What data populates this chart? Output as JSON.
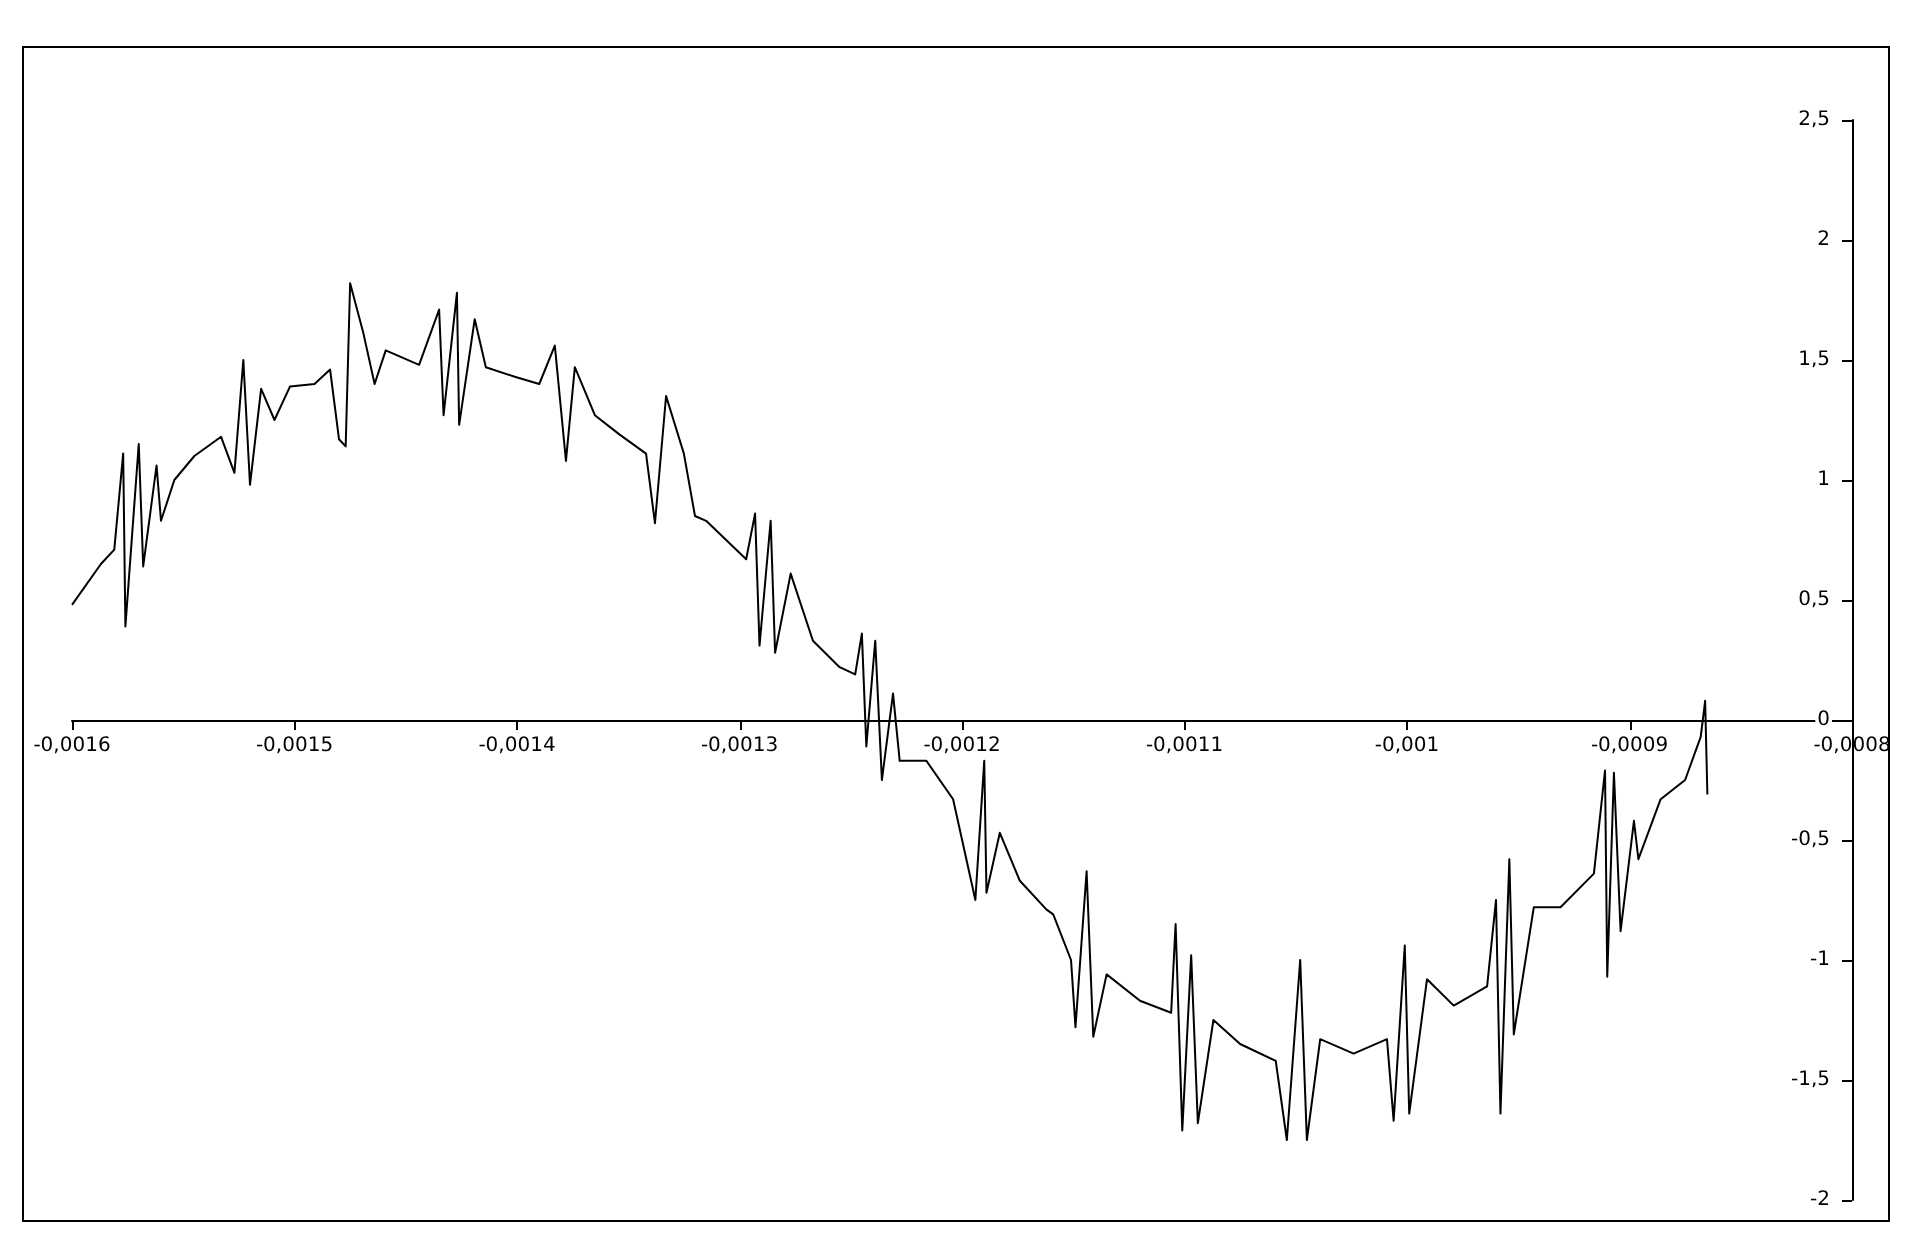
{
  "chart_data": {
    "type": "line",
    "xlim": [
      -0.0016,
      -0.0008
    ],
    "ylim": [
      -2,
      2.5
    ],
    "xticks": [
      {
        "value": -0.0016,
        "label": "-0,0016"
      },
      {
        "value": -0.0015,
        "label": "-0,0015"
      },
      {
        "value": -0.0014,
        "label": "-0,0014"
      },
      {
        "value": -0.0013,
        "label": "-0,0013"
      },
      {
        "value": -0.0012,
        "label": "-0,0012"
      },
      {
        "value": -0.0011,
        "label": "-0,0011"
      },
      {
        "value": -0.001,
        "label": "-0,001"
      },
      {
        "value": -0.0009,
        "label": "-0,0009"
      },
      {
        "value": -0.0008,
        "label": "-0,0008"
      }
    ],
    "yticks": [
      {
        "value": -2,
        "label": "-2"
      },
      {
        "value": -1.5,
        "label": "-1,5"
      },
      {
        "value": -1,
        "label": "-1"
      },
      {
        "value": -0.5,
        "label": "-0,5"
      },
      0,
      {
        "value": 0.5,
        "label": "0,5"
      },
      1,
      {
        "value": 1.5,
        "label": "1,5"
      },
      2,
      {
        "value": 2.5,
        "label": "2,5"
      }
    ],
    "marker": "none",
    "series": [
      {
        "color": "#000000",
        "x": [
          -0.0016,
          -0.001587,
          -0.001581,
          -0.001577,
          -0.001576,
          -0.00157,
          -0.001568,
          -0.001562,
          -0.00156,
          -0.001554,
          -0.001545,
          -0.001533,
          -0.001527,
          -0.001523,
          -0.00152,
          -0.001515,
          -0.001509,
          -0.001502,
          -0.001491,
          -0.001484,
          -0.00148,
          -0.001477,
          -0.001475,
          -0.001469,
          -0.001464,
          -0.001459,
          -0.001444,
          -0.001435,
          -0.001433,
          -0.001427,
          -0.001426,
          -0.001419,
          -0.001414,
          -0.001401,
          -0.00139,
          -0.001383,
          -0.001378,
          -0.001374,
          -0.001365,
          -0.001354,
          -0.001342,
          -0.001338,
          -0.001333,
          -0.001325,
          -0.00132,
          -0.001315,
          -0.001297,
          -0.001293,
          -0.001291,
          -0.001286,
          -0.001284,
          -0.001277,
          -0.001267,
          -0.001255,
          -0.001248,
          -0.001245,
          -0.001243,
          -0.001239,
          -0.001236,
          -0.001231,
          -0.001228,
          -0.001216,
          -0.001204,
          -0.001194,
          -0.00119,
          -0.001189,
          -0.001183,
          -0.001174,
          -0.001162,
          -0.001159,
          -0.001151,
          -0.001149,
          -0.001144,
          -0.001141,
          -0.001135,
          -0.00112,
          -0.001106,
          -0.001104,
          -0.001101,
          -0.001097,
          -0.001094,
          -0.001087,
          -0.001075,
          -0.001059,
          -0.001054,
          -0.001048,
          -0.001045,
          -0.001039,
          -0.001024,
          -0.001009,
          -0.001006,
          -0.001001,
          -0.000999,
          -0.000991,
          -0.000979,
          -0.000964,
          -0.00096,
          -0.000958,
          -0.000954,
          -0.000952,
          -0.000943,
          -0.000931,
          -0.000916,
          -0.000911,
          -0.00091,
          -0.000907,
          -0.000904,
          -0.000898,
          -0.000896,
          -0.000886,
          -0.000875,
          -0.000868,
          -0.000866,
          -0.000865
        ],
        "values": [
          0.48,
          0.65,
          0.71,
          1.11,
          0.39,
          1.15,
          0.64,
          1.06,
          0.83,
          1.0,
          1.1,
          1.18,
          1.03,
          1.5,
          0.98,
          1.38,
          1.25,
          1.39,
          1.4,
          1.46,
          1.17,
          1.14,
          1.82,
          1.61,
          1.4,
          1.54,
          1.48,
          1.71,
          1.27,
          1.78,
          1.23,
          1.67,
          1.47,
          1.43,
          1.4,
          1.56,
          1.08,
          1.47,
          1.27,
          1.19,
          1.11,
          0.82,
          1.35,
          1.11,
          0.85,
          0.83,
          0.67,
          0.86,
          0.31,
          0.83,
          0.28,
          0.61,
          0.33,
          0.22,
          0.19,
          0.36,
          -0.11,
          0.33,
          -0.25,
          0.11,
          -0.17,
          -0.17,
          -0.33,
          -0.75,
          -0.17,
          -0.72,
          -0.47,
          -0.67,
          -0.79,
          -0.81,
          -1.0,
          -1.28,
          -0.63,
          -1.32,
          -1.06,
          -1.17,
          -1.22,
          -0.85,
          -1.71,
          -0.98,
          -1.68,
          -1.25,
          -1.35,
          -1.42,
          -1.75,
          -1.0,
          -1.75,
          -1.33,
          -1.39,
          -1.33,
          -1.67,
          -0.94,
          -1.64,
          -1.08,
          -1.19,
          -1.11,
          -0.75,
          -1.64,
          -0.58,
          -1.31,
          -0.78,
          -0.78,
          -0.64,
          -0.21,
          -1.07,
          -0.22,
          -0.88,
          -0.42,
          -0.58,
          -0.33,
          -0.25,
          -0.07,
          0.08,
          -0.31
        ]
      }
    ]
  }
}
